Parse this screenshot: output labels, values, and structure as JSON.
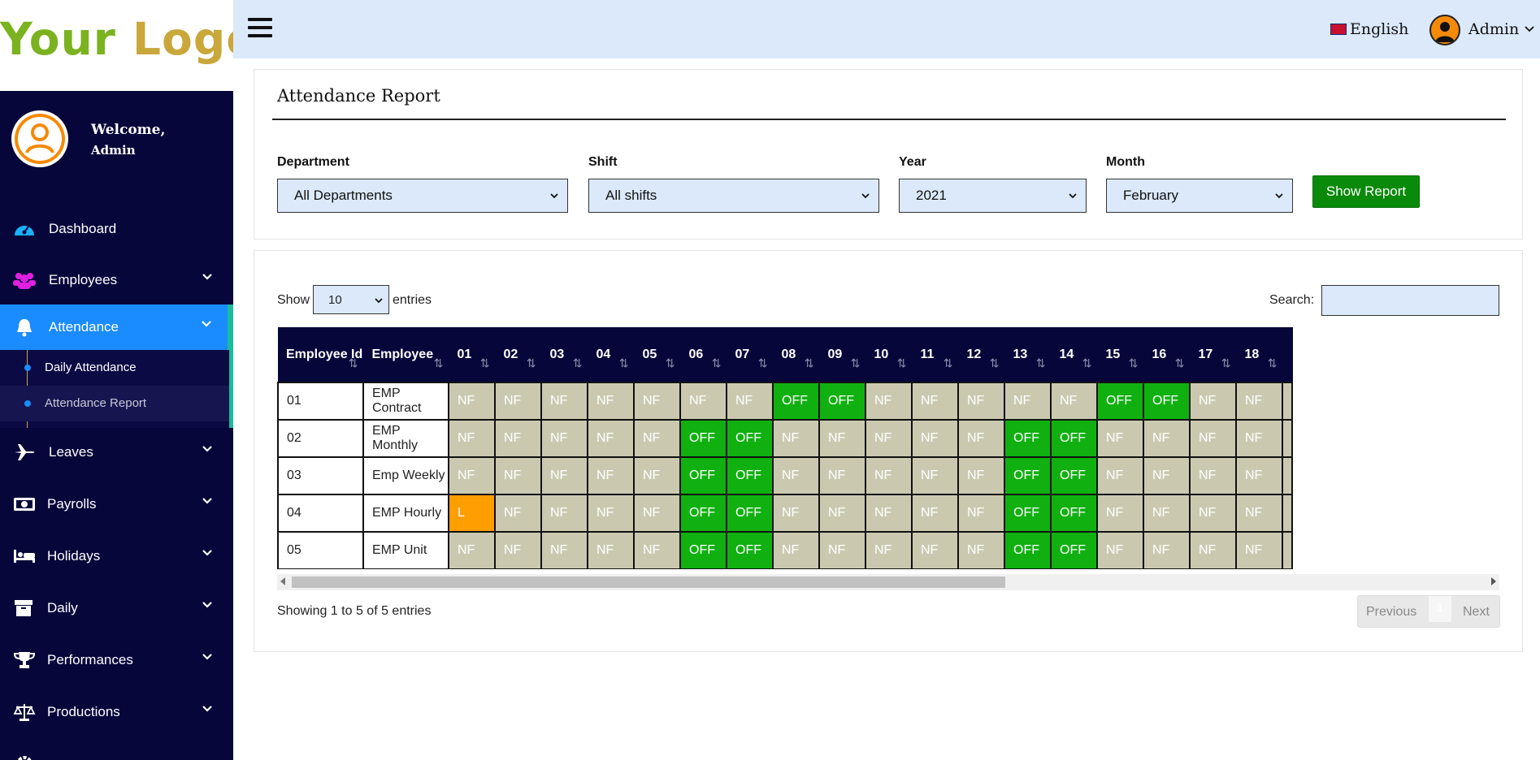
{
  "logo": {
    "word1": "Your",
    "word2": "Logo"
  },
  "topbar": {
    "language": "English",
    "admin": "Admin"
  },
  "sidebar": {
    "welcome": "Welcome,",
    "user": "Admin",
    "items": [
      {
        "label": "Dashboard",
        "icon": "gauge-icon"
      },
      {
        "label": "Employees",
        "icon": "users-icon"
      },
      {
        "label": "Attendance",
        "icon": "bell-icon"
      },
      {
        "label": "Leaves",
        "icon": "plane-icon"
      },
      {
        "label": "Payrolls",
        "icon": "money-icon"
      },
      {
        "label": "Holidays",
        "icon": "bed-icon"
      },
      {
        "label": "Daily",
        "icon": "archive-icon"
      },
      {
        "label": "Performances",
        "icon": "trophy-icon"
      },
      {
        "label": "Productions",
        "icon": "scale-icon"
      }
    ],
    "sub_items": [
      "Daily Attendance",
      "Attendance Report"
    ]
  },
  "report": {
    "title": "Attendance Report",
    "filters": {
      "department_label": "Department",
      "department_value": "All Departments",
      "shift_label": "Shift",
      "shift_value": "All shifts",
      "year_label": "Year",
      "year_value": "2021",
      "month_label": "Month",
      "month_value": "February"
    },
    "show_button": "Show Report"
  },
  "table_controls": {
    "show": "Show",
    "length": "10",
    "entries": "entries",
    "search": "Search:",
    "info": "Showing 1 to 5 of 5 entries",
    "prev": "Previous",
    "page": "1",
    "next": "Next"
  },
  "table": {
    "headers": [
      "Employee Id",
      "Employee",
      "01",
      "02",
      "03",
      "04",
      "05",
      "06",
      "07",
      "08",
      "09",
      "10",
      "11",
      "12",
      "13",
      "14",
      "15",
      "16",
      "17",
      "18"
    ],
    "rows": [
      {
        "id": "01",
        "name": "EMP Contract",
        "cells": [
          "NF",
          "NF",
          "NF",
          "NF",
          "NF",
          "NF",
          "NF",
          "OFF",
          "OFF",
          "NF",
          "NF",
          "NF",
          "NF",
          "NF",
          "OFF",
          "OFF",
          "NF",
          "NF"
        ]
      },
      {
        "id": "02",
        "name": "EMP Monthly",
        "cells": [
          "NF",
          "NF",
          "NF",
          "NF",
          "NF",
          "OFF",
          "OFF",
          "NF",
          "NF",
          "NF",
          "NF",
          "NF",
          "OFF",
          "OFF",
          "NF",
          "NF",
          "NF",
          "NF"
        ]
      },
      {
        "id": "03",
        "name": "Emp Weekly",
        "cells": [
          "NF",
          "NF",
          "NF",
          "NF",
          "NF",
          "OFF",
          "OFF",
          "NF",
          "NF",
          "NF",
          "NF",
          "NF",
          "OFF",
          "OFF",
          "NF",
          "NF",
          "NF",
          "NF"
        ]
      },
      {
        "id": "04",
        "name": "EMP Hourly",
        "cells": [
          "L",
          "NF",
          "NF",
          "NF",
          "NF",
          "OFF",
          "OFF",
          "NF",
          "NF",
          "NF",
          "NF",
          "NF",
          "OFF",
          "OFF",
          "NF",
          "NF",
          "NF",
          "NF"
        ]
      },
      {
        "id": "05",
        "name": "EMP Unit",
        "cells": [
          "NF",
          "NF",
          "NF",
          "NF",
          "NF",
          "OFF",
          "OFF",
          "NF",
          "NF",
          "NF",
          "NF",
          "NF",
          "OFF",
          "OFF",
          "NF",
          "NF",
          "NF",
          "NF"
        ]
      }
    ]
  },
  "colors": {
    "sidebar": "#07063b",
    "active": "#1a8cff",
    "off": "#10b010",
    "nf": "#cac9b0",
    "leave": "#ff9e00",
    "button": "#0a8a0a"
  }
}
